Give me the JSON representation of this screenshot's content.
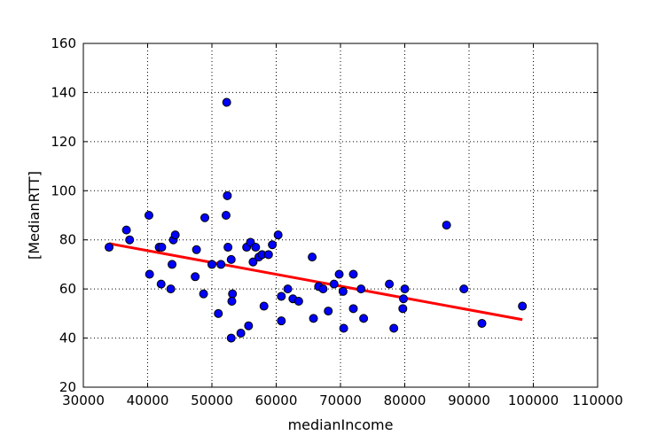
{
  "chart_data": {
    "type": "scatter",
    "title": "",
    "xlabel": "medianIncome",
    "ylabel": "[MedianRTT]",
    "xlim": [
      30000,
      110000
    ],
    "ylim": [
      20,
      160
    ],
    "xticks": [
      30000,
      40000,
      50000,
      60000,
      70000,
      80000,
      90000,
      100000,
      110000
    ],
    "yticks": [
      20,
      40,
      60,
      80,
      100,
      120,
      140,
      160
    ],
    "grid": true,
    "point_color": "#0000ff",
    "line_color": "#ff0000",
    "series": [
      {
        "values": [
          [
            34000,
            77
          ],
          [
            36700,
            84
          ],
          [
            37200,
            80
          ],
          [
            40200,
            90
          ],
          [
            40300,
            66
          ],
          [
            41800,
            77
          ],
          [
            42200,
            77
          ],
          [
            42100,
            62
          ],
          [
            43600,
            60
          ],
          [
            43800,
            70
          ],
          [
            44000,
            80
          ],
          [
            44300,
            82
          ],
          [
            47400,
            65
          ],
          [
            47600,
            76
          ],
          [
            48700,
            58
          ],
          [
            48900,
            89
          ],
          [
            50000,
            70
          ],
          [
            51000,
            50
          ],
          [
            51400,
            70
          ],
          [
            52200,
            90
          ],
          [
            52400,
            98
          ],
          [
            52500,
            77
          ],
          [
            52300,
            136
          ],
          [
            53000,
            72
          ],
          [
            53200,
            58
          ],
          [
            53100,
            55
          ],
          [
            53000,
            40
          ],
          [
            54500,
            42
          ],
          [
            55400,
            77
          ],
          [
            55700,
            45
          ],
          [
            56000,
            79
          ],
          [
            56400,
            71
          ],
          [
            56800,
            77
          ],
          [
            57300,
            73
          ],
          [
            57800,
            74
          ],
          [
            58100,
            53
          ],
          [
            58800,
            74
          ],
          [
            59400,
            78
          ],
          [
            60300,
            82
          ],
          [
            60800,
            57
          ],
          [
            60800,
            47
          ],
          [
            61800,
            60
          ],
          [
            62600,
            56
          ],
          [
            63500,
            55
          ],
          [
            65600,
            73
          ],
          [
            65800,
            48
          ],
          [
            66600,
            61
          ],
          [
            67300,
            60
          ],
          [
            68100,
            51
          ],
          [
            69000,
            62
          ],
          [
            69800,
            66
          ],
          [
            70400,
            59
          ],
          [
            70500,
            44
          ],
          [
            72000,
            66
          ],
          [
            72000,
            52
          ],
          [
            73200,
            60
          ],
          [
            73600,
            48
          ],
          [
            77600,
            62
          ],
          [
            78300,
            44
          ],
          [
            79700,
            52
          ],
          [
            79800,
            56
          ],
          [
            80000,
            60
          ],
          [
            86500,
            86
          ],
          [
            89200,
            60
          ],
          [
            92000,
            46
          ],
          [
            98300,
            53
          ]
        ]
      }
    ],
    "fit_line": [
      [
        34000,
        78.5
      ],
      [
        98300,
        47.5
      ]
    ]
  }
}
